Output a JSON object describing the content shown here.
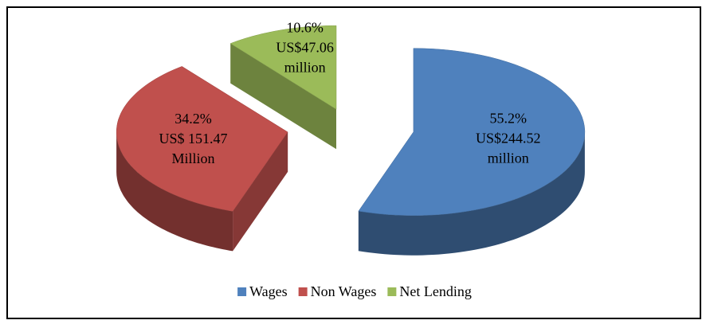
{
  "chart_data": {
    "type": "pie",
    "categories": [
      "Wages",
      "Non Wages",
      "Net Lending"
    ],
    "values": [
      55.2,
      34.2,
      10.6
    ],
    "value_labels": [
      "55.2%",
      "34.2%",
      "10.6%"
    ],
    "amounts": [
      244.52,
      151.47,
      47.06
    ],
    "amount_labels": [
      [
        "US$244.52",
        "million"
      ],
      [
        "US$ 151.47",
        "Million"
      ],
      [
        "US$47.06",
        "million"
      ]
    ],
    "colors": [
      "#4f81bd",
      "#c0504d",
      "#9bbb59"
    ],
    "legend": "bottom"
  }
}
